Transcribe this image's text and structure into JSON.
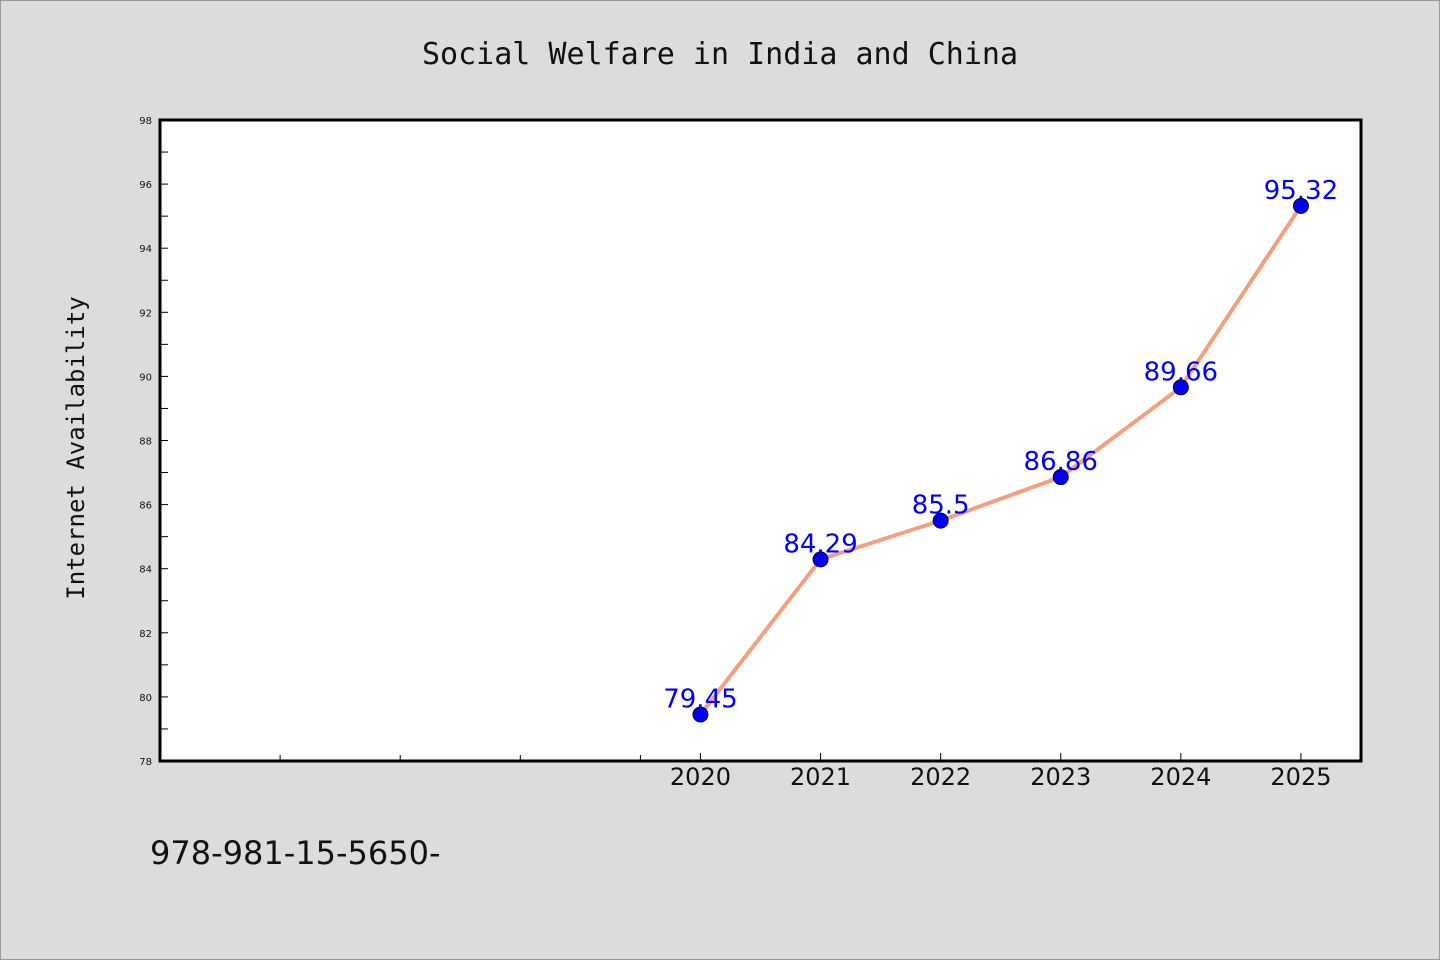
{
  "chart_data": {
    "type": "line",
    "title": "Social Welfare in India and China",
    "ylabel": "Internet Availability",
    "xlabel": "",
    "x": [
      "2020",
      "2021",
      "2022",
      "2023",
      "2024",
      "2025"
    ],
    "series": [
      {
        "values": [
          79.45,
          84.29,
          85.5,
          86.86,
          89.66,
          95.32
        ]
      }
    ],
    "data_labels": [
      "79.45",
      "84.29",
      "85.5",
      "86.86",
      "89.66",
      "95.32"
    ],
    "ylim": [
      78,
      98
    ],
    "y_ticks": [
      "78",
      "80",
      "82",
      "84",
      "86",
      "88",
      "90",
      "92",
      "94",
      "96",
      "98"
    ],
    "x_minor_ticks": [
      "2015.5",
      "2016.5",
      "2017.5",
      "2018.5",
      "2019.5"
    ],
    "xlim": [
      2015.5,
      2025.5
    ],
    "grid": false,
    "legend": "none",
    "footer_text": "978-981-15-5650-",
    "colors": {
      "line": "#f4a07e",
      "marker": "#0000ee",
      "label": "#0000ff",
      "background": "#dcdcdc",
      "plot_area": "#ffffff"
    }
  }
}
